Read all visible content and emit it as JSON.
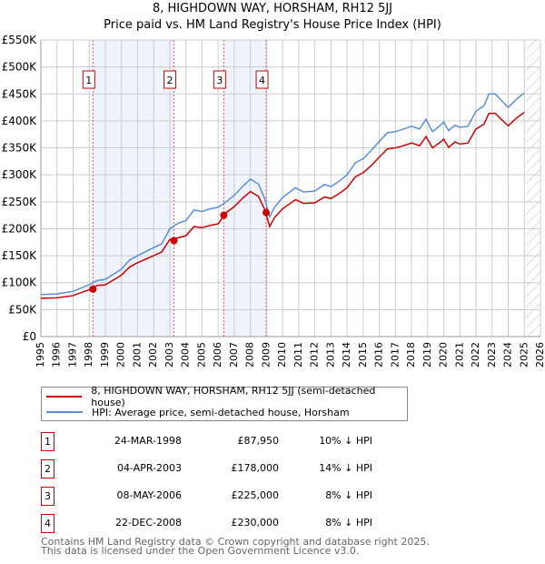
{
  "chart_data": {
    "type": "line",
    "title": "8, HIGHDOWN WAY, HORSHAM, RH12 5JJ",
    "subtitle": "Price paid vs. HM Land Registry's House Price Index (HPI)",
    "xlim": [
      1995,
      2026
    ],
    "ylim": [
      0,
      550000
    ],
    "y_ticks": [
      0,
      50000,
      100000,
      150000,
      200000,
      250000,
      300000,
      350000,
      400000,
      450000,
      500000,
      550000
    ],
    "y_tick_labels": [
      "£0",
      "£50K",
      "£100K",
      "£150K",
      "£200K",
      "£250K",
      "£300K",
      "£350K",
      "£400K",
      "£450K",
      "£500K",
      "£550K"
    ],
    "x_tick_labels": [
      "1995",
      "1996",
      "1997",
      "1998",
      "1999",
      "2000",
      "2001",
      "2002",
      "2003",
      "2004",
      "2005",
      "2006",
      "2007",
      "2008",
      "2009",
      "2010",
      "2011",
      "2012",
      "2013",
      "2014",
      "2015",
      "2016",
      "2017",
      "2018",
      "2019",
      "2020",
      "2021",
      "2022",
      "2023",
      "2024",
      "2025",
      "2026"
    ],
    "grid": true,
    "shaded_ranges": [
      [
        1998.23,
        2003.26
      ],
      [
        2006.35,
        2008.98
      ]
    ],
    "hatched_from": 2025.1,
    "x": [
      1995,
      1996,
      1997,
      1998,
      1998.5,
      1999,
      2000,
      2000.5,
      2001,
      2002,
      2002.5,
      2003,
      2003.5,
      2004,
      2004.5,
      2005,
      2005.5,
      2006,
      2006.5,
      2007,
      2007.5,
      2008,
      2008.5,
      2008.9,
      2009.2,
      2009.5,
      2010,
      2010.8,
      2011.3,
      2012,
      2012.6,
      2013,
      2013.5,
      2014,
      2014.5,
      2015,
      2015.5,
      2016,
      2016.5,
      2017,
      2017.5,
      2018,
      2018.5,
      2018.9,
      2019.3,
      2019.8,
      2020,
      2020.3,
      2020.7,
      2021,
      2021.5,
      2022,
      2022.5,
      2022.8,
      2023.2,
      2023.6,
      2024,
      2024.5,
      2025
    ],
    "series": [
      {
        "name": "8, HIGHDOWN WAY, HORSHAM, RH12 5JJ (semi-detached house)",
        "color": "#cc0000",
        "values": [
          71,
          72,
          76,
          87,
          95,
          96,
          114,
          129,
          137,
          150,
          157,
          180,
          183,
          187,
          204,
          202,
          206,
          209,
          230,
          241,
          256,
          269,
          260,
          235,
          204,
          221,
          237,
          254,
          247,
          248,
          259,
          256,
          265,
          276,
          296,
          304,
          317,
          333,
          348,
          350,
          354,
          359,
          354,
          371,
          350,
          361,
          366,
          351,
          361,
          357,
          359,
          385,
          394,
          414,
          414,
          402,
          391,
          405,
          416
        ]
      },
      {
        "name": "HPI: Average price, semi-detached house, Horsham",
        "color": "#5b8ed6",
        "values": [
          78,
          79,
          84,
          96,
          104,
          106,
          125,
          142,
          150,
          165,
          172,
          200,
          210,
          215,
          235,
          232,
          237,
          240,
          250,
          262,
          278,
          292,
          283,
          255,
          222,
          240,
          258,
          276,
          268,
          270,
          282,
          278,
          288,
          300,
          322,
          330,
          345,
          362,
          378,
          380,
          385,
          390,
          385,
          403,
          380,
          392,
          398,
          382,
          392,
          388,
          390,
          418,
          428,
          450,
          450,
          437,
          425,
          440,
          452
        ]
      }
    ],
    "value_unit": "thousands GBP",
    "sales": [
      {
        "label": "1",
        "date": "24-MAR-1998",
        "x": 1998.23,
        "price": "£87,950",
        "value": 87.95,
        "hpi": "10% ↓ HPI"
      },
      {
        "label": "2",
        "date": "04-APR-2003",
        "x": 2003.26,
        "price": "£178,000",
        "value": 178,
        "hpi": "14% ↓ HPI"
      },
      {
        "label": "3",
        "date": "08-MAY-2006",
        "x": 2006.35,
        "price": "£225,000",
        "value": 225,
        "hpi": "8% ↓ HPI"
      },
      {
        "label": "4",
        "date": "22-DEC-2008",
        "x": 2008.98,
        "price": "£230,000",
        "value": 230,
        "hpi": "8% ↓ HPI"
      }
    ]
  },
  "footer": {
    "line1": "Contains HM Land Registry data © Crown copyright and database right 2025.",
    "line2": "This data is licensed under the Open Government Licence v3.0."
  }
}
